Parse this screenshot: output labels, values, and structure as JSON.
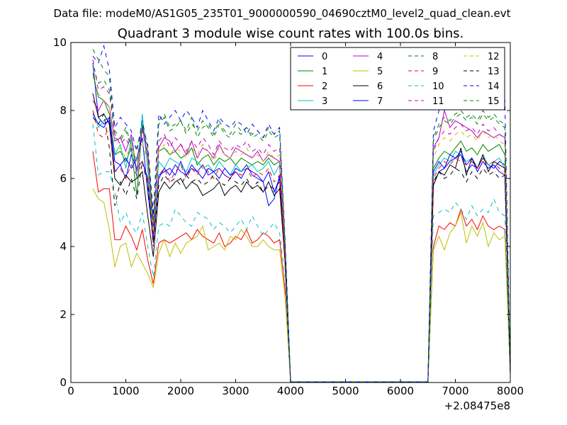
{
  "figure": {
    "suptitle": "Data file: modeM0/AS1G05_235T01_9000000590_04690cztM0_level2_quad_clean.evt"
  },
  "chart_data": {
    "type": "line",
    "title": "Quadrant 3 module wise count rates with 100.0s bins.",
    "xlabel": "",
    "ylabel": "",
    "x_offset_label": "+2.08475e8",
    "xlim": [
      0,
      8000
    ],
    "ylim": [
      0,
      10
    ],
    "xticks": [
      "0",
      "1000",
      "2000",
      "3000",
      "4000",
      "5000",
      "6000",
      "7000",
      "8000"
    ],
    "yticks": [
      "0",
      "2",
      "4",
      "6",
      "8",
      "10"
    ],
    "grid": false,
    "legend": {
      "placement": "top-right",
      "columns": 4
    },
    "x": [
      400,
      500,
      600,
      700,
      800,
      900,
      1000,
      1100,
      1200,
      1300,
      1400,
      1500,
      1600,
      1700,
      1800,
      1900,
      2000,
      2100,
      2200,
      2300,
      2400,
      2500,
      2600,
      2700,
      2800,
      2900,
      3000,
      3100,
      3200,
      3300,
      3400,
      3500,
      3600,
      3700,
      3800,
      3900,
      4000,
      6500,
      6600,
      6700,
      6800,
      6900,
      7000,
      7100,
      7200,
      7300,
      7400,
      7500,
      7600,
      7700,
      7800,
      7900,
      8000
    ],
    "series": [
      {
        "name": "0",
        "color": "#0000ff",
        "dash": "solid",
        "values": [
          9.4,
          7.8,
          7.6,
          7.7,
          6.2,
          6.4,
          6.0,
          6.7,
          6.3,
          6.5,
          6.0,
          4.1,
          6.1,
          6.2,
          6.3,
          6.1,
          6.5,
          6.1,
          6.3,
          6.2,
          6.4,
          6.1,
          6.2,
          6.3,
          6.1,
          6.0,
          6.3,
          6.2,
          6.4,
          6.1,
          6.0,
          5.9,
          6.2,
          5.6,
          6.0,
          3.6,
          0.02,
          0.02,
          5.8,
          6.2,
          6.3,
          6.5,
          6.6,
          6.7,
          6.2,
          6.4,
          6.3,
          6.6,
          6.4,
          6.3,
          6.5,
          6.4,
          0.3
        ]
      },
      {
        "name": "1",
        "color": "#008000",
        "dash": "solid",
        "values": [
          9.1,
          8.4,
          8.3,
          7.9,
          6.7,
          6.8,
          6.5,
          6.9,
          5.5,
          7.6,
          6.6,
          4.7,
          6.8,
          6.9,
          6.7,
          6.8,
          6.6,
          6.7,
          6.9,
          6.4,
          6.6,
          6.7,
          6.4,
          6.6,
          6.5,
          6.6,
          6.4,
          6.6,
          6.5,
          6.4,
          6.5,
          6.4,
          6.6,
          6.4,
          6.5,
          3.8,
          0.02,
          0.02,
          6.3,
          6.6,
          6.8,
          6.7,
          6.9,
          7.1,
          6.8,
          6.9,
          6.7,
          7.0,
          6.8,
          6.9,
          7.0,
          6.7,
          0.3
        ]
      },
      {
        "name": "2",
        "color": "#ff0000",
        "dash": "solid",
        "values": [
          6.8,
          5.6,
          5.7,
          5.7,
          4.2,
          4.2,
          4.6,
          4.3,
          3.9,
          4.5,
          3.6,
          2.9,
          4.1,
          4.2,
          4.1,
          4.2,
          4.3,
          4.4,
          4.2,
          4.5,
          4.3,
          4.2,
          4.1,
          4.4,
          4.0,
          4.1,
          4.3,
          4.2,
          4.5,
          4.1,
          4.2,
          4.4,
          4.3,
          4.1,
          4.2,
          2.7,
          0.02,
          0.02,
          4.0,
          4.6,
          4.5,
          4.7,
          4.6,
          5.1,
          4.6,
          4.8,
          4.5,
          4.9,
          4.6,
          4.5,
          4.6,
          4.5,
          0.3
        ]
      },
      {
        "name": "3",
        "color": "#00bfbf",
        "dash": "solid",
        "values": [
          8.0,
          7.5,
          7.7,
          7.8,
          6.7,
          7.0,
          6.3,
          7.2,
          6.0,
          7.9,
          6.2,
          4.4,
          6.5,
          6.3,
          6.6,
          6.5,
          6.4,
          6.2,
          6.6,
          6.5,
          6.3,
          6.4,
          6.2,
          6.5,
          6.3,
          6.1,
          6.4,
          6.2,
          6.3,
          6.4,
          6.2,
          6.3,
          6.5,
          6.1,
          6.4,
          3.7,
          0.02,
          0.02,
          6.1,
          6.4,
          6.6,
          6.5,
          6.8,
          6.7,
          6.5,
          6.6,
          6.3,
          6.7,
          6.4,
          6.5,
          6.6,
          6.3,
          0.3
        ]
      },
      {
        "name": "4",
        "color": "#bf00bf",
        "dash": "solid",
        "values": [
          8.3,
          8.0,
          8.3,
          8.1,
          7.1,
          7.2,
          6.8,
          7.3,
          6.2,
          7.5,
          6.6,
          4.5,
          6.9,
          7.2,
          7.1,
          6.8,
          7.0,
          6.7,
          7.1,
          6.6,
          6.9,
          6.8,
          6.6,
          7.0,
          6.7,
          6.6,
          6.9,
          6.8,
          6.7,
          6.6,
          6.8,
          6.5,
          6.7,
          6.6,
          6.5,
          3.8,
          0.02,
          0.02,
          6.9,
          7.2,
          8.0,
          7.5,
          7.7,
          7.6,
          7.5,
          7.4,
          7.2,
          7.4,
          7.3,
          7.2,
          7.3,
          7.2,
          0.3
        ]
      },
      {
        "name": "5",
        "color": "#bfbf00",
        "dash": "solid",
        "values": [
          5.7,
          5.4,
          5.3,
          4.5,
          3.4,
          4.0,
          4.1,
          3.4,
          3.8,
          3.5,
          3.2,
          2.8,
          3.8,
          4.2,
          3.7,
          4.1,
          3.8,
          4.1,
          4.2,
          4.3,
          4.6,
          3.9,
          4.0,
          4.1,
          3.9,
          4.3,
          4.2,
          4.5,
          4.3,
          4.0,
          4.0,
          4.2,
          4.0,
          3.9,
          3.9,
          2.5,
          0.02,
          0.02,
          3.9,
          4.3,
          3.9,
          4.4,
          4.6,
          5.0,
          4.1,
          4.6,
          4.3,
          4.7,
          4.0,
          4.4,
          4.2,
          4.3,
          0.2
        ]
      },
      {
        "name": "6",
        "color": "#000000",
        "dash": "solid",
        "values": [
          8.5,
          7.8,
          7.9,
          7.6,
          6.0,
          5.8,
          6.1,
          5.9,
          6.0,
          6.2,
          4.9,
          3.7,
          5.6,
          5.9,
          5.7,
          5.9,
          6.0,
          5.7,
          5.9,
          5.8,
          5.5,
          5.6,
          5.7,
          5.9,
          5.5,
          5.7,
          5.8,
          5.6,
          5.9,
          5.7,
          5.8,
          5.6,
          5.9,
          5.5,
          5.7,
          3.5,
          0.02,
          0.02,
          5.8,
          6.2,
          6.1,
          6.4,
          6.3,
          6.9,
          6.1,
          6.6,
          6.3,
          6.7,
          6.2,
          6.5,
          6.4,
          6.3,
          0.3
        ]
      },
      {
        "name": "7",
        "color": "#0000ff",
        "dash": "solid",
        "values": [
          7.9,
          7.6,
          7.5,
          7.8,
          6.5,
          6.4,
          6.6,
          6.3,
          6.6,
          7.2,
          5.6,
          4.2,
          6.0,
          6.3,
          6.1,
          6.4,
          6.2,
          6.1,
          6.4,
          6.2,
          6.0,
          6.3,
          6.2,
          6.0,
          6.3,
          6.1,
          6.2,
          6.0,
          6.3,
          6.2,
          6.1,
          5.9,
          5.2,
          5.4,
          6.1,
          3.6,
          0.02,
          0.02,
          6.2,
          6.5,
          6.3,
          6.7,
          6.6,
          6.8,
          6.4,
          6.6,
          6.2,
          6.5,
          6.3,
          6.4,
          6.2,
          6.1,
          0.3
        ]
      },
      {
        "name": "8",
        "color": "#008000",
        "dash": "dashed",
        "values": [
          9.8,
          9.5,
          9.2,
          9.0,
          7.2,
          7.1,
          7.4,
          6.9,
          6.5,
          7.5,
          7.0,
          5.0,
          7.7,
          7.9,
          7.5,
          7.6,
          7.7,
          7.4,
          7.8,
          7.2,
          7.5,
          7.6,
          7.3,
          7.7,
          7.4,
          7.3,
          7.6,
          7.4,
          7.5,
          7.3,
          7.4,
          7.2,
          7.5,
          7.3,
          7.4,
          4.1,
          0.02,
          0.02,
          7.1,
          7.5,
          7.7,
          7.6,
          7.8,
          7.9,
          7.7,
          7.8,
          7.6,
          7.9,
          7.7,
          7.8,
          7.6,
          7.5,
          0.3
        ]
      },
      {
        "name": "9",
        "color": "#ff0000",
        "dash": "dashed",
        "values": [
          8.0,
          7.3,
          7.2,
          7.5,
          6.2,
          6.3,
          6.0,
          6.4,
          6.1,
          6.5,
          5.9,
          4.0,
          6.1,
          6.3,
          5.9,
          6.2,
          6.4,
          6.0,
          6.3,
          6.1,
          6.4,
          6.2,
          6.0,
          6.3,
          6.1,
          6.0,
          6.2,
          6.1,
          6.3,
          6.0,
          6.2,
          6.1,
          6.3,
          5.9,
          6.1,
          3.6,
          0.02,
          0.02,
          6.0,
          6.3,
          6.5,
          6.4,
          6.6,
          6.5,
          6.4,
          6.5,
          6.3,
          6.6,
          6.4,
          6.5,
          6.3,
          6.2,
          0.3
        ]
      },
      {
        "name": "10",
        "color": "#00bfbf",
        "dash": "dashed",
        "values": [
          7.6,
          6.1,
          6.2,
          6.2,
          5.6,
          4.7,
          5.0,
          4.6,
          4.4,
          5.0,
          4.0,
          3.1,
          4.6,
          4.7,
          4.6,
          5.1,
          4.9,
          4.7,
          4.6,
          5.0,
          4.9,
          4.8,
          4.5,
          4.7,
          4.6,
          4.4,
          4.6,
          4.8,
          4.5,
          4.9,
          4.6,
          4.3,
          4.5,
          4.7,
          4.4,
          3.1,
          0.02,
          0.02,
          4.9,
          5.0,
          5.1,
          5.0,
          5.3,
          5.1,
          4.8,
          5.2,
          4.9,
          5.1,
          5.0,
          5.4,
          5.0,
          4.9,
          0.3
        ]
      },
      {
        "name": "11",
        "color": "#bf00bf",
        "dash": "dashed",
        "values": [
          9.5,
          8.6,
          8.7,
          8.5,
          7.3,
          7.0,
          7.2,
          6.8,
          6.9,
          7.4,
          6.7,
          4.3,
          7.1,
          7.3,
          6.9,
          7.2,
          7.0,
          6.8,
          7.1,
          6.9,
          7.2,
          7.0,
          6.7,
          7.1,
          6.9,
          6.8,
          7.0,
          6.9,
          7.1,
          6.8,
          6.9,
          6.7,
          7.0,
          6.8,
          6.9,
          3.9,
          0.02,
          0.02,
          6.8,
          7.2,
          7.4,
          7.3,
          7.5,
          7.6,
          7.4,
          7.5,
          7.3,
          7.6,
          7.4,
          7.5,
          7.3,
          7.2,
          0.3
        ]
      },
      {
        "name": "12",
        "color": "#bfbf00",
        "dash": "dashed",
        "values": [
          9.0,
          8.5,
          8.3,
          8.1,
          6.8,
          6.9,
          6.6,
          7.0,
          6.5,
          7.1,
          6.4,
          4.4,
          6.8,
          7.0,
          6.7,
          6.9,
          6.8,
          6.6,
          6.9,
          6.7,
          7.0,
          6.8,
          6.5,
          6.9,
          6.7,
          6.6,
          6.8,
          6.7,
          6.9,
          6.6,
          6.7,
          6.5,
          6.8,
          6.6,
          6.7,
          3.8,
          0.02,
          0.02,
          6.6,
          7.0,
          7.2,
          7.1,
          7.3,
          7.4,
          7.2,
          7.3,
          7.1,
          7.4,
          7.2,
          7.3,
          7.1,
          7.0,
          0.3
        ]
      },
      {
        "name": "13",
        "color": "#000000",
        "dash": "dashed",
        "values": [
          7.8,
          7.6,
          7.9,
          6.9,
          5.2,
          5.9,
          5.5,
          6.0,
          5.4,
          6.5,
          5.8,
          4.1,
          5.8,
          6.1,
          5.9,
          6.0,
          5.8,
          6.1,
          5.9,
          6.0,
          5.8,
          5.9,
          6.1,
          5.9,
          5.8,
          6.0,
          5.9,
          5.8,
          6.0,
          5.7,
          5.9,
          5.6,
          5.8,
          5.7,
          5.9,
          3.5,
          0.02,
          0.02,
          5.9,
          6.2,
          6.0,
          6.1,
          6.3,
          6.2,
          5.9,
          6.2,
          6.0,
          6.3,
          6.1,
          6.2,
          6.0,
          6.1,
          0.3
        ]
      },
      {
        "name": "14",
        "color": "#0000ff",
        "dash": "dashed",
        "values": [
          9.6,
          9.4,
          9.9,
          9.2,
          7.5,
          7.8,
          7.6,
          7.4,
          6.8,
          7.7,
          6.9,
          4.9,
          7.9,
          7.6,
          7.8,
          8.0,
          7.7,
          8.0,
          7.8,
          7.5,
          8.0,
          7.7,
          7.4,
          7.8,
          7.6,
          7.5,
          7.7,
          7.6,
          7.3,
          7.6,
          7.4,
          7.2,
          7.6,
          7.3,
          7.5,
          4.2,
          0.02,
          0.02,
          7.4,
          8.0,
          8.3,
          8.1,
          8.6,
          8.7,
          8.4,
          8.6,
          8.3,
          8.5,
          8.2,
          8.6,
          8.4,
          8.3,
          0.3
        ]
      },
      {
        "name": "15",
        "color": "#008000",
        "dash": "dashed",
        "values": [
          9.3,
          8.8,
          8.9,
          8.6,
          7.4,
          7.2,
          7.5,
          7.0,
          6.9,
          7.6,
          6.8,
          4.6,
          7.6,
          7.8,
          7.4,
          7.5,
          7.7,
          7.3,
          7.6,
          7.4,
          7.7,
          7.5,
          7.2,
          7.6,
          7.3,
          7.2,
          7.4,
          7.3,
          7.5,
          7.2,
          7.3,
          7.1,
          7.4,
          7.2,
          7.3,
          4.0,
          0.02,
          0.02,
          7.2,
          7.6,
          7.8,
          7.7,
          7.9,
          8.0,
          7.8,
          7.9,
          7.7,
          8.0,
          7.8,
          7.9,
          7.7,
          7.6,
          0.3
        ]
      }
    ]
  }
}
